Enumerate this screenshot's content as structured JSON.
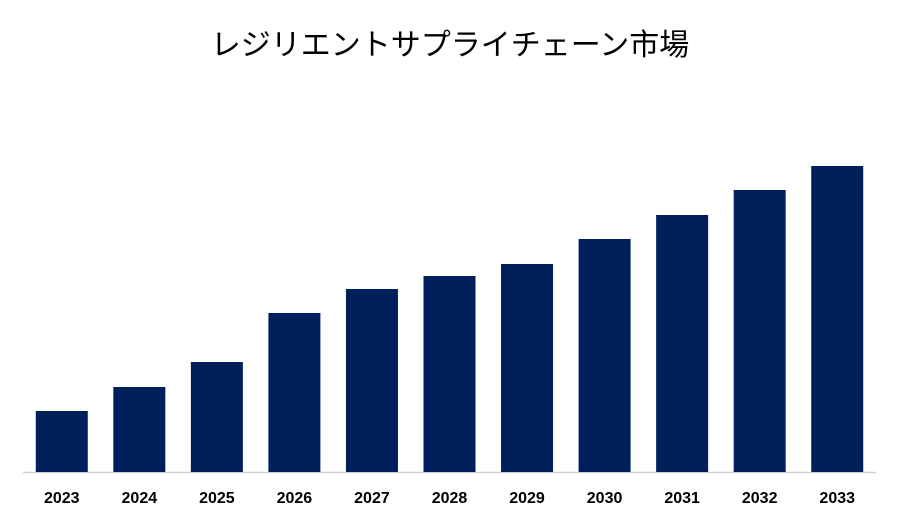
{
  "chart_data": {
    "type": "bar",
    "title": "レジリエントサプライチェーン市場",
    "categories": [
      "2023",
      "2024",
      "2025",
      "2026",
      "2027",
      "2028",
      "2029",
      "2030",
      "2031",
      "2032",
      "2033"
    ],
    "values": [
      6.1,
      8.5,
      11.0,
      15.9,
      18.3,
      19.6,
      20.8,
      23.3,
      25.7,
      28.2,
      30.6
    ],
    "color": "#00205b",
    "ylim": [
      0,
      32
    ]
  }
}
